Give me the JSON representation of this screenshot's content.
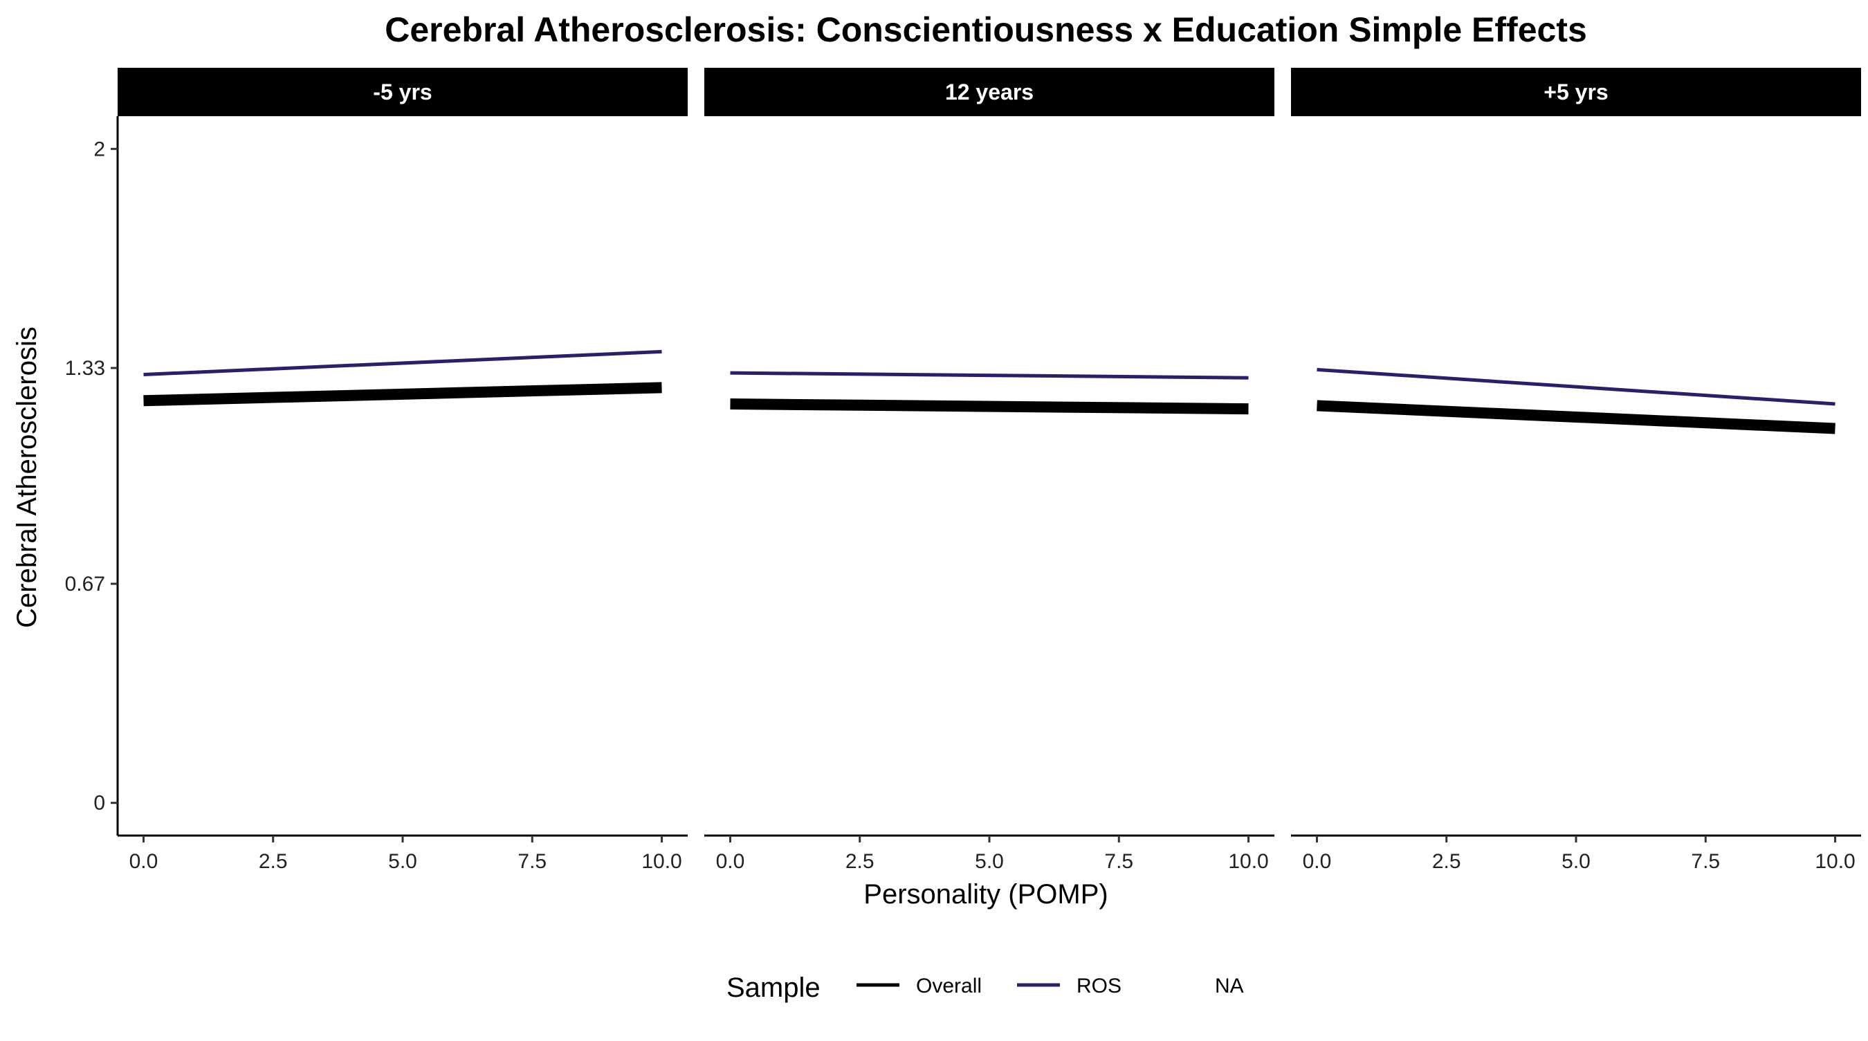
{
  "chart_data": {
    "type": "line",
    "title": "Cerebral Atherosclerosis: Conscientiousness x Education Simple Effects",
    "xlabel": "Personality (POMP)",
    "ylabel": "Cerebral Atherosclerosis",
    "xlim": [
      -0.5,
      10.5
    ],
    "ylim": [
      -0.1,
      2.1
    ],
    "x_ticks": [
      0,
      2.5,
      5,
      7.5,
      10
    ],
    "x_tick_labels": [
      "0.0",
      "2.5",
      "5.0",
      "7.5",
      "10.0"
    ],
    "y_ticks": [
      0,
      0.67,
      1.33,
      2
    ],
    "y_tick_labels": [
      "0",
      "0.67",
      "1.33",
      "2"
    ],
    "grid": false,
    "legend": {
      "title": "Sample",
      "position": "bottom",
      "entries": [
        {
          "label": "Overall",
          "color": "#000000"
        },
        {
          "label": "ROS",
          "color": "#2d1e6b"
        },
        {
          "label": "NA",
          "color": "none"
        }
      ]
    },
    "panels": [
      {
        "label": "-5 yrs",
        "series": [
          {
            "name": "Overall",
            "color": "#000000",
            "x": [
              0,
              10
            ],
            "y": [
              1.23,
              1.27
            ]
          },
          {
            "name": "ROS",
            "color": "#2d1e6b",
            "x": [
              0,
              10
            ],
            "y": [
              1.31,
              1.38
            ]
          }
        ]
      },
      {
        "label": "12 years",
        "series": [
          {
            "name": "Overall",
            "color": "#000000",
            "x": [
              0,
              10
            ],
            "y": [
              1.22,
              1.205
            ]
          },
          {
            "name": "ROS",
            "color": "#2d1e6b",
            "x": [
              0,
              10
            ],
            "y": [
              1.315,
              1.3
            ]
          }
        ]
      },
      {
        "label": "+5 yrs",
        "series": [
          {
            "name": "Overall",
            "color": "#000000",
            "x": [
              0,
              10
            ],
            "y": [
              1.215,
              1.145
            ]
          },
          {
            "name": "ROS",
            "color": "#2d1e6b",
            "x": [
              0,
              10
            ],
            "y": [
              1.325,
              1.22
            ]
          }
        ]
      }
    ]
  }
}
